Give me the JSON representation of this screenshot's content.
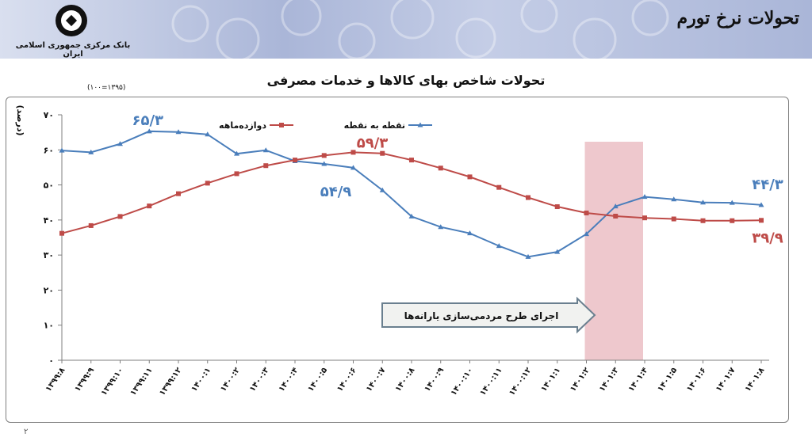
{
  "header": {
    "title": "تحولات نرخ تورم",
    "bank_name": "بانک مرکزی جمهوری اسلامی ایران"
  },
  "page_number": "۲",
  "colors": {
    "series_pointwise": "#4a7ebb",
    "series_twelve_month": "#be4b48",
    "highlight": "#e8b6bc"
  },
  "chart_data": {
    "type": "line",
    "title": "تحولات شاخص بهای کالاها و خدمات مصرفی",
    "base_note": "(۱۰۰=۱۳۹۵)",
    "ylabel": "(درصد)",
    "ylim": [
      0,
      70
    ],
    "yticks": [
      0,
      10,
      20,
      30,
      40,
      50,
      60,
      70
    ],
    "ytick_labels": [
      "۰",
      "۱۰",
      "۲۰",
      "۳۰",
      "۴۰",
      "۵۰",
      "۶۰",
      "۷۰"
    ],
    "grid": false,
    "legend_position": "top",
    "categories": [
      "۱۳۹۹:۸",
      "۱۳۹۹:۹",
      "۱۳۹۹:۱۰",
      "۱۳۹۹:۱۱",
      "۱۳۹۹:۱۲",
      "۱۴۰۰:۱",
      "۱۴۰۰:۲",
      "۱۴۰۰:۳",
      "۱۴۰۰:۴",
      "۱۴۰۰:۵",
      "۱۴۰۰:۶",
      "۱۴۰۰:۷",
      "۱۴۰۰:۸",
      "۱۴۰۰:۹",
      "۱۴۰۰:۱۰",
      "۱۴۰۰:۱۱",
      "۱۴۰۰:۱۲",
      "۱۴۰۱:۱",
      "۱۴۰۱:۲",
      "۱۴۰۱:۳",
      "۱۴۰۱:۴",
      "۱۴۰۱:۵",
      "۱۴۰۱:۶",
      "۱۴۰۱:۷",
      "۱۴۰۱:۸"
    ],
    "series": [
      {
        "name": "نقطه به نقطه",
        "values": [
          59.8,
          59.3,
          61.7,
          65.3,
          65.1,
          64.4,
          58.9,
          59.9,
          56.8,
          56.0,
          54.9,
          48.5,
          41.0,
          38.0,
          36.2,
          32.6,
          29.5,
          30.9,
          36.0,
          43.9,
          46.6,
          45.9,
          45.0,
          44.9,
          44.3
        ]
      },
      {
        "name": "دوازده‌ماهه",
        "values": [
          36.2,
          38.4,
          41.0,
          44.0,
          47.5,
          50.5,
          53.2,
          55.5,
          57.1,
          58.4,
          59.3,
          59.0,
          57.1,
          54.8,
          52.3,
          49.3,
          46.4,
          43.8,
          42.0,
          41.1,
          40.6,
          40.3,
          39.8,
          39.8,
          39.9
        ]
      }
    ],
    "annotations": [
      {
        "text": "۶۵/۳",
        "series": 0,
        "index": 3
      },
      {
        "text": "۵۴/۹",
        "series": 0,
        "index": 10
      },
      {
        "text": "۵۹/۳",
        "series": 1,
        "index": 10
      },
      {
        "text": "۴۴/۳",
        "series": 0,
        "index": 24
      },
      {
        "text": "۳۹/۹",
        "series": 1,
        "index": 24
      }
    ],
    "highlight_band": {
      "from": "۱۴۰۱:۲",
      "to": "۱۴۰۱:۴",
      "label": "اجرای طرح مردمی‌سازی یارانه‌ها"
    }
  }
}
